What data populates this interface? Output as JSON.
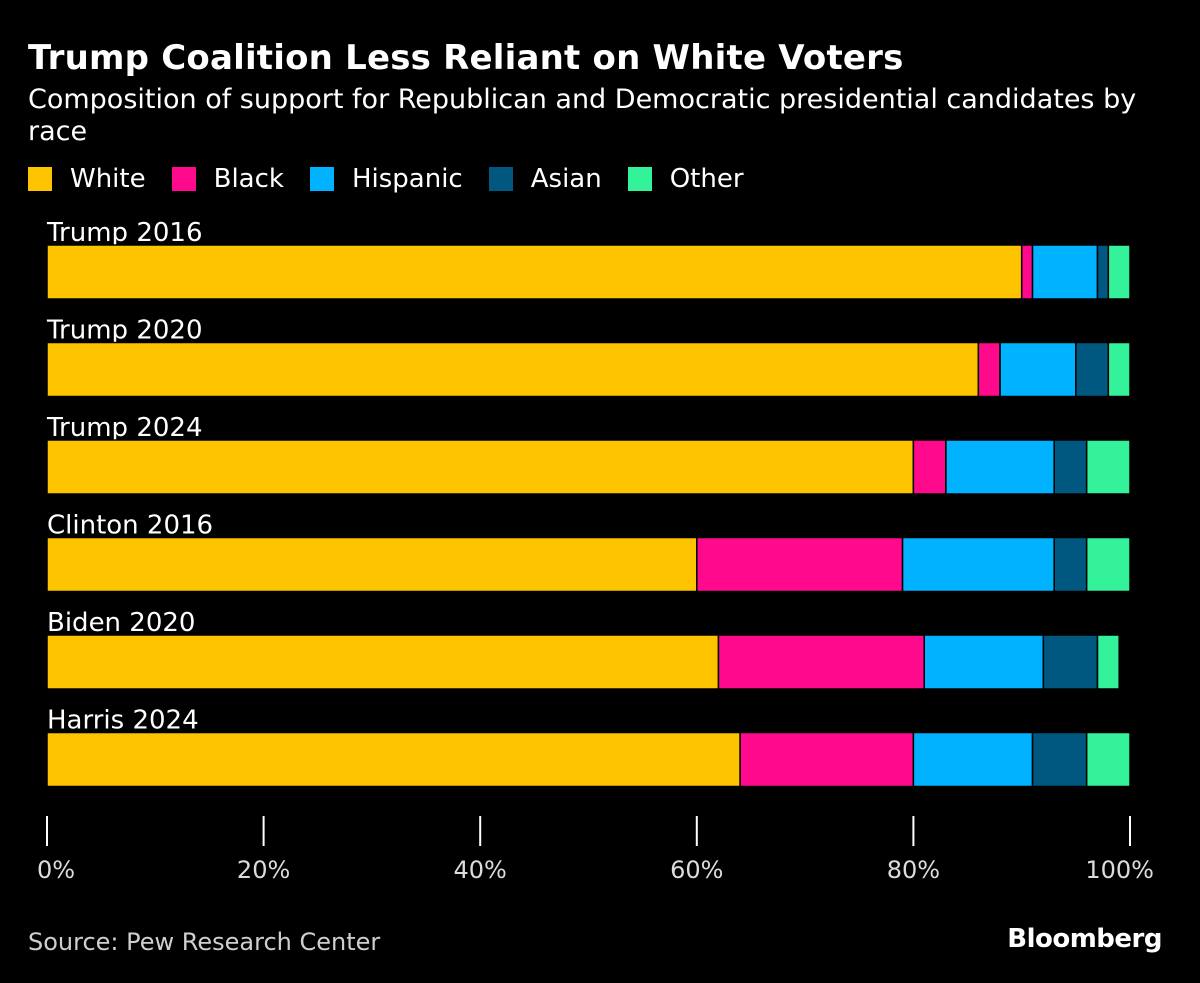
{
  "title": "Trump Coalition Less Reliant on White Voters",
  "subtitle": "Composition of support for Republican and Democratic presidential candidates by race",
  "source": "Source: Pew Research Center",
  "brand": "Bloomberg",
  "colors": {
    "White": "#ffc400",
    "Black": "#ff0a8c",
    "Hispanic": "#00b2ff",
    "Asian": "#005880",
    "Other": "#33f29a",
    "background": "#000000",
    "axis": "#ffffff"
  },
  "chart_data": {
    "type": "bar",
    "orientation": "horizontal",
    "stacked": true,
    "title": "Trump Coalition Less Reliant on White Voters",
    "xlabel": "",
    "ylabel": "",
    "xlim": [
      0,
      100
    ],
    "x_ticks": [
      "0%",
      "20%",
      "40%",
      "60%",
      "80%",
      "100%"
    ],
    "x_tick_values": [
      0,
      20,
      40,
      60,
      80,
      100
    ],
    "grid": false,
    "legend_position": "top-left",
    "categories": [
      "Trump 2016",
      "Trump 2020",
      "Trump 2024",
      "Clinton 2016",
      "Biden 2020",
      "Harris 2024"
    ],
    "series": [
      {
        "name": "White",
        "values": [
          90,
          86,
          80,
          60,
          62,
          64
        ]
      },
      {
        "name": "Black",
        "values": [
          1,
          2,
          3,
          19,
          19,
          16
        ]
      },
      {
        "name": "Hispanic",
        "values": [
          6,
          7,
          10,
          14,
          11,
          11
        ]
      },
      {
        "name": "Asian",
        "values": [
          1,
          3,
          3,
          3,
          5,
          5
        ]
      },
      {
        "name": "Other",
        "values": [
          2,
          2,
          4,
          4,
          2,
          4
        ]
      }
    ]
  }
}
